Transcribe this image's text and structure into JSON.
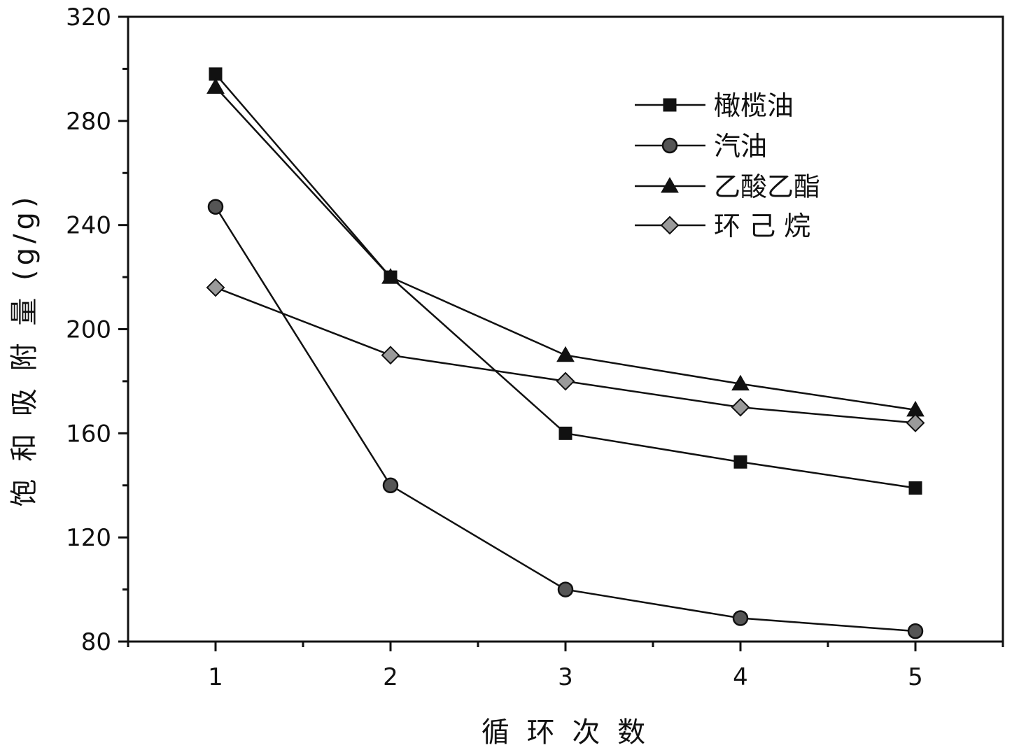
{
  "chart_data": {
    "type": "line",
    "x": [
      1,
      2,
      3,
      4,
      5
    ],
    "xticks": [
      "1",
      "2",
      "3",
      "4",
      "5"
    ],
    "yticks": [
      "80",
      "120",
      "160",
      "200",
      "240",
      "280",
      "320"
    ],
    "xlabel": "循 环 次 数",
    "ylabel": "饱 和 吸 附 量 (g/g)",
    "xlim": [
      0.5,
      5.5
    ],
    "ylim": [
      80,
      320
    ],
    "legend_position": "top-right",
    "grid": false,
    "series": [
      {
        "name": "橄榄油",
        "marker": "square",
        "values": [
          298,
          220,
          160,
          149,
          139
        ]
      },
      {
        "name": "汽油",
        "marker": "circle",
        "values": [
          247,
          140,
          100,
          89,
          84
        ]
      },
      {
        "name": "乙酸乙酯",
        "marker": "triangle",
        "values": [
          293,
          220,
          190,
          179,
          169
        ]
      },
      {
        "name": "环 己 烷",
        "marker": "diamond",
        "values": [
          216,
          190,
          180,
          170,
          164
        ]
      }
    ]
  }
}
